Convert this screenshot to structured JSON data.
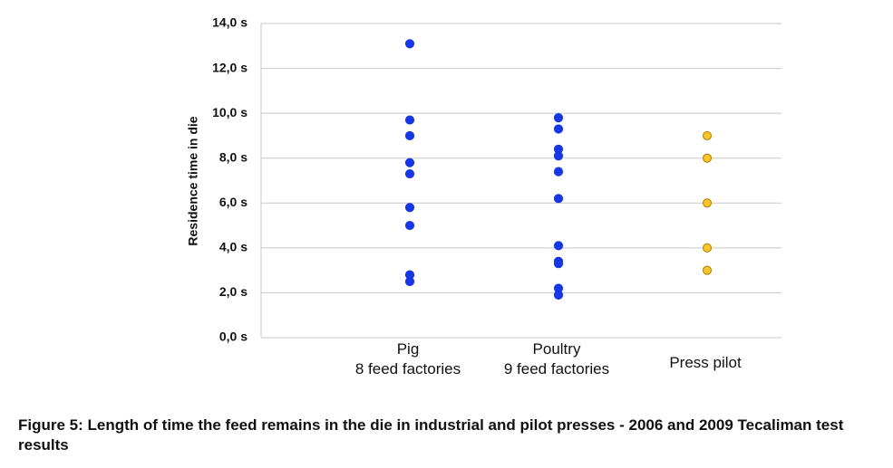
{
  "chart_data": {
    "type": "strip",
    "y_label": "Residence time in die",
    "categories": [
      "Pig\n8 feed factories",
      "Poultry\n9 feed factories",
      "Press pilot"
    ],
    "values": [
      [
        13.1,
        9.7,
        9.0,
        7.8,
        7.3,
        5.8,
        5.0,
        2.8,
        2.5
      ],
      [
        9.8,
        9.3,
        8.4,
        8.1,
        7.4,
        6.2,
        4.1,
        3.4,
        3.3,
        2.2,
        1.9
      ],
      [
        9.0,
        8.0,
        6.0,
        4.0,
        3.0
      ]
    ],
    "colors": [
      "#1736e6",
      "#1736e6",
      "#f7c62a"
    ],
    "edge_colors": [
      "#1736e6",
      "#1736e6",
      "#b98a12"
    ],
    "ylim": [
      0,
      14
    ],
    "yticks": [
      {
        "value": 0,
        "label": "0,0 s"
      },
      {
        "value": 2,
        "label": "2,0 s"
      },
      {
        "value": 4,
        "label": "4,0 s"
      },
      {
        "value": 6,
        "label": "6,0 s"
      },
      {
        "value": 8,
        "label": "8,0 s"
      },
      {
        "value": 10,
        "label": "10,0 s"
      },
      {
        "value": 12,
        "label": "12,0 s"
      },
      {
        "value": 14,
        "label": "14,0 s"
      }
    ],
    "grid": true,
    "caption": "Figure 5: Length of time the feed remains in the die in industrial and pilot presses - 2006 and 2009 Tecaliman test results"
  }
}
